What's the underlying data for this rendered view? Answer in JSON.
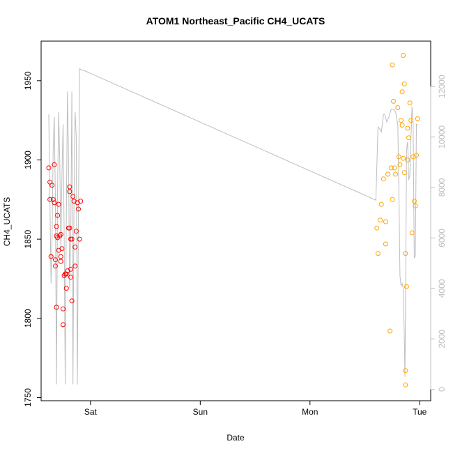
{
  "chart_data": {
    "type": "scatter",
    "title": "ATOM1 Northeast_Pacific CH4_UCATS",
    "xlabel": "Date",
    "ylabel": "CH4_UCATS",
    "x_range": [
      -0.45,
      3.1
    ],
    "x_ticks": [
      {
        "x": 0,
        "label": "Sat"
      },
      {
        "x": 1,
        "label": "Sun"
      },
      {
        "x": 2,
        "label": "Mon"
      },
      {
        "x": 3,
        "label": "Tue"
      }
    ],
    "y_range": [
      1748,
      1975
    ],
    "y_ticks": [
      1750,
      1800,
      1850,
      1900,
      1950
    ],
    "y2_range": [
      -450,
      13800
    ],
    "y2_ticks": [
      0,
      2000,
      4000,
      6000,
      8000,
      10000,
      12000
    ],
    "grid": false,
    "colors": {
      "series1": "#ff0000",
      "series2": "#ffa500",
      "altitude": "#bdbdbd",
      "axis": "#000000"
    },
    "series": [
      {
        "values": [
          [
            -0.38,
            1895
          ],
          [
            -0.37,
            1886
          ],
          [
            -0.37,
            1875
          ],
          [
            -0.36,
            1839
          ],
          [
            -0.35,
            1884
          ],
          [
            -0.34,
            1875
          ],
          [
            -0.33,
            1897
          ],
          [
            -0.33,
            1873
          ],
          [
            -0.32,
            1837
          ],
          [
            -0.32,
            1833
          ],
          [
            -0.31,
            1807
          ],
          [
            -0.31,
            1858
          ],
          [
            -0.31,
            1852
          ],
          [
            -0.3,
            1851
          ],
          [
            -0.3,
            1865
          ],
          [
            -0.29,
            1872
          ],
          [
            -0.29,
            1843
          ],
          [
            -0.28,
            1852
          ],
          [
            -0.27,
            1853
          ],
          [
            -0.27,
            1836
          ],
          [
            -0.27,
            1839
          ],
          [
            -0.26,
            1844
          ],
          [
            -0.25,
            1796
          ],
          [
            -0.25,
            1806
          ],
          [
            -0.24,
            1827
          ],
          [
            -0.23,
            1828
          ],
          [
            -0.22,
            1819
          ],
          [
            -0.22,
            1828
          ],
          [
            -0.21,
            1830
          ],
          [
            -0.2,
            1857
          ],
          [
            -0.19,
            1857
          ],
          [
            -0.19,
            1883
          ],
          [
            -0.19,
            1880
          ],
          [
            -0.18,
            1850
          ],
          [
            -0.18,
            1831
          ],
          [
            -0.18,
            1826
          ],
          [
            -0.17,
            1811
          ],
          [
            -0.17,
            1850
          ],
          [
            -0.16,
            1877
          ],
          [
            -0.15,
            1874
          ],
          [
            -0.14,
            1845
          ],
          [
            -0.14,
            1833
          ],
          [
            -0.13,
            1855
          ],
          [
            -0.12,
            1873
          ],
          [
            -0.11,
            1869
          ],
          [
            -0.1,
            1850
          ],
          [
            -0.09,
            1874
          ]
        ]
      },
      {
        "values": [
          [
            2.61,
            1857
          ],
          [
            2.62,
            1841
          ],
          [
            2.64,
            1862
          ],
          [
            2.65,
            1872
          ],
          [
            2.67,
            1888
          ],
          [
            2.69,
            1861
          ],
          [
            2.69,
            1847
          ],
          [
            2.71,
            1891
          ],
          [
            2.73,
            1792
          ],
          [
            2.74,
            1895
          ],
          [
            2.75,
            1960
          ],
          [
            2.75,
            1875
          ],
          [
            2.76,
            1937
          ],
          [
            2.77,
            1895
          ],
          [
            2.78,
            1891
          ],
          [
            2.8,
            1933
          ],
          [
            2.81,
            1902
          ],
          [
            2.82,
            1897
          ],
          [
            2.83,
            1925
          ],
          [
            2.84,
            1922
          ],
          [
            2.84,
            1943
          ],
          [
            2.85,
            1966
          ],
          [
            2.85,
            1901
          ],
          [
            2.86,
            1948
          ],
          [
            2.86,
            1892
          ],
          [
            2.87,
            1767
          ],
          [
            2.87,
            1758
          ],
          [
            2.87,
            1841
          ],
          [
            2.88,
            1820
          ],
          [
            2.89,
            1900
          ],
          [
            2.89,
            1920
          ],
          [
            2.9,
            1914
          ],
          [
            2.91,
            1936
          ],
          [
            2.92,
            1925
          ],
          [
            2.93,
            1854
          ],
          [
            2.94,
            1902
          ],
          [
            2.95,
            1874
          ],
          [
            2.96,
            1871
          ],
          [
            2.97,
            1903
          ],
          [
            2.98,
            1926
          ]
        ]
      },
      {
        "axis": "right",
        "values": [
          [
            -0.38,
            10900
          ],
          [
            -0.37,
            7500
          ],
          [
            -0.36,
            4200
          ],
          [
            -0.35,
            6000
          ],
          [
            -0.34,
            9500
          ],
          [
            -0.33,
            10800
          ],
          [
            -0.32,
            7500
          ],
          [
            -0.31,
            200
          ],
          [
            -0.3,
            8000
          ],
          [
            -0.29,
            11000
          ],
          [
            -0.28,
            9000
          ],
          [
            -0.27,
            5500
          ],
          [
            -0.26,
            8500
          ],
          [
            -0.25,
            10500
          ],
          [
            -0.24,
            6000
          ],
          [
            -0.23,
            200
          ],
          [
            -0.22,
            7000
          ],
          [
            -0.21,
            11800
          ],
          [
            -0.2,
            9000
          ],
          [
            -0.19,
            4000
          ],
          [
            -0.18,
            6000
          ],
          [
            -0.17,
            11800
          ],
          [
            -0.16,
            200
          ],
          [
            -0.15,
            7500
          ],
          [
            -0.14,
            11000
          ],
          [
            -0.13,
            10000
          ],
          [
            -0.12,
            200
          ],
          [
            -0.11,
            6500
          ],
          [
            -0.1,
            12700
          ],
          [
            -0.04,
            12600
          ],
          [
            2.6,
            7500
          ],
          [
            2.62,
            10400
          ],
          [
            2.64,
            10300
          ],
          [
            2.65,
            10200
          ],
          [
            2.66,
            10500
          ],
          [
            2.67,
            10900
          ],
          [
            2.68,
            10900
          ],
          [
            2.7,
            10600
          ],
          [
            2.72,
            10800
          ],
          [
            2.74,
            11100
          ],
          [
            2.76,
            11100
          ],
          [
            2.78,
            11000
          ],
          [
            2.8,
            10500
          ],
          [
            2.81,
            8000
          ],
          [
            2.82,
            4500
          ],
          [
            2.83,
            4100
          ],
          [
            2.84,
            4200
          ],
          [
            2.85,
            4000
          ],
          [
            2.86,
            2000
          ],
          [
            2.865,
            500
          ],
          [
            2.87,
            3000
          ],
          [
            2.88,
            9500
          ],
          [
            2.89,
            9800
          ],
          [
            2.9,
            8300
          ],
          [
            2.91,
            8500
          ],
          [
            2.92,
            10000
          ],
          [
            2.93,
            11200
          ],
          [
            2.94,
            10500
          ],
          [
            2.95,
            5200
          ],
          [
            2.96,
            5300
          ],
          [
            2.97,
            10500
          ],
          [
            2.98,
            10500
          ]
        ]
      }
    ]
  }
}
